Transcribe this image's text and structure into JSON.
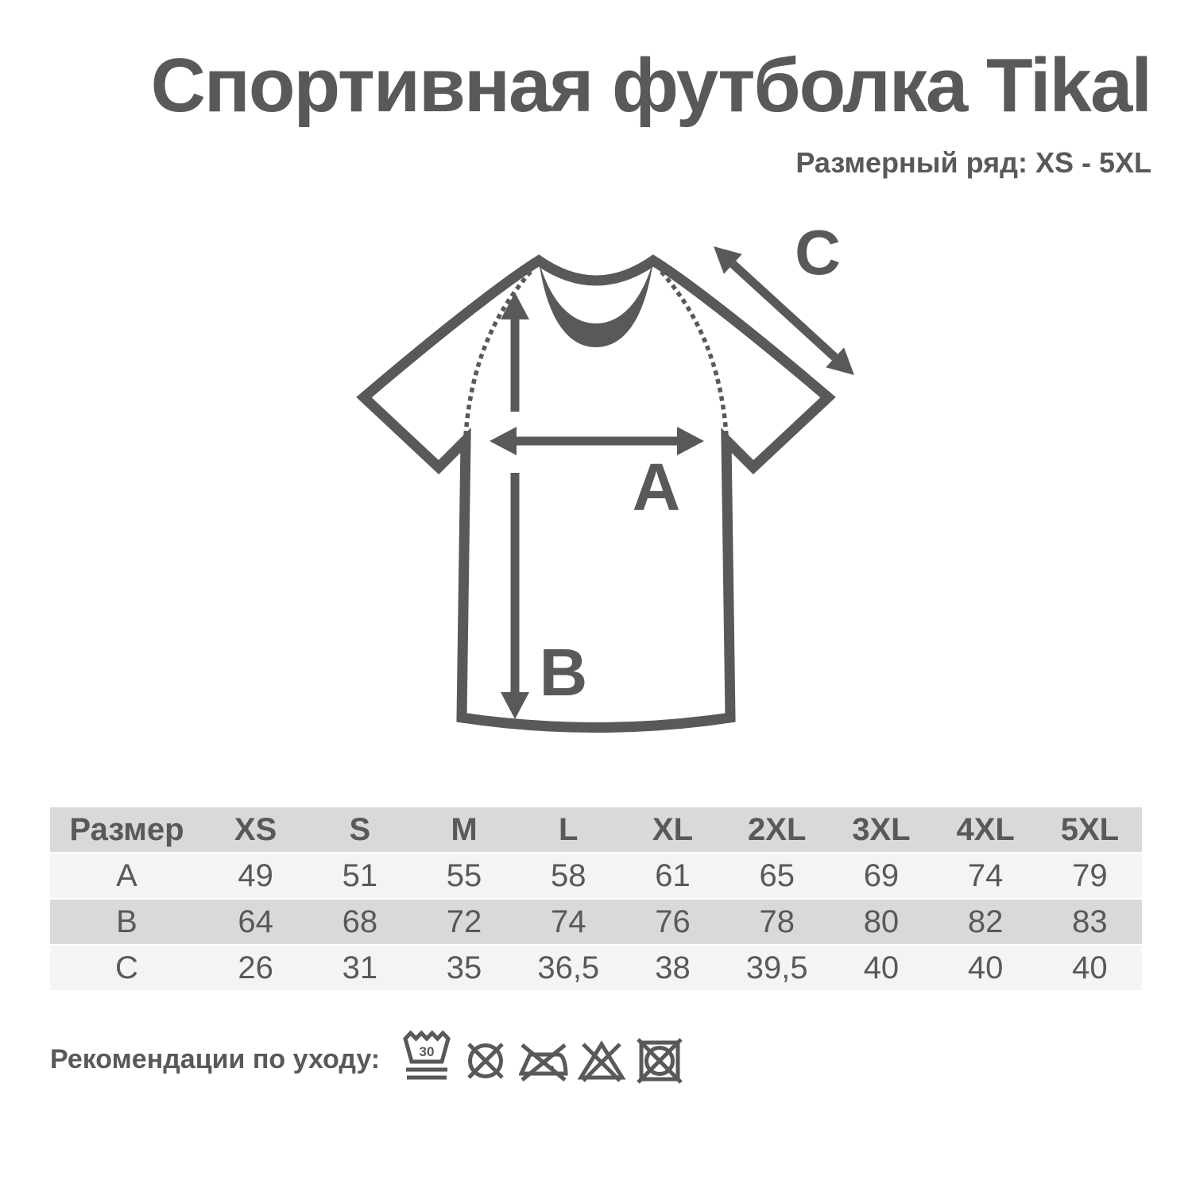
{
  "page": {
    "title": "Спортивная футболка Tikal",
    "subtitle": "Размерный ряд: XS - 5XL",
    "colors": {
      "ink": "#58595b",
      "table_row_dark": "#d9d9d7",
      "table_row_light": "#f5f4f2",
      "background": "#ffffff"
    }
  },
  "diagram": {
    "labels": {
      "a": "A",
      "b": "B",
      "c": "C"
    }
  },
  "size_table": {
    "header": [
      "Размер",
      "XS",
      "S",
      "M",
      "L",
      "XL",
      "2XL",
      "3XL",
      "4XL",
      "5XL"
    ],
    "rows": [
      {
        "label": "A",
        "values": [
          "49",
          "51",
          "55",
          "58",
          "61",
          "65",
          "69",
          "74",
          "79"
        ]
      },
      {
        "label": "B",
        "values": [
          "64",
          "68",
          "72",
          "74",
          "76",
          "78",
          "80",
          "82",
          "83"
        ]
      },
      {
        "label": "C",
        "values": [
          "26",
          "31",
          "35",
          "36,5",
          "38",
          "39,5",
          "40",
          "40",
          "40"
        ]
      }
    ]
  },
  "care": {
    "label": "Рекомендации по уходу:",
    "icons": [
      {
        "name": "wash-30-very-gentle",
        "value": "30"
      },
      {
        "name": "do-not-dry-clean"
      },
      {
        "name": "do-not-iron"
      },
      {
        "name": "do-not-bleach"
      },
      {
        "name": "do-not-tumble-dry"
      }
    ]
  }
}
